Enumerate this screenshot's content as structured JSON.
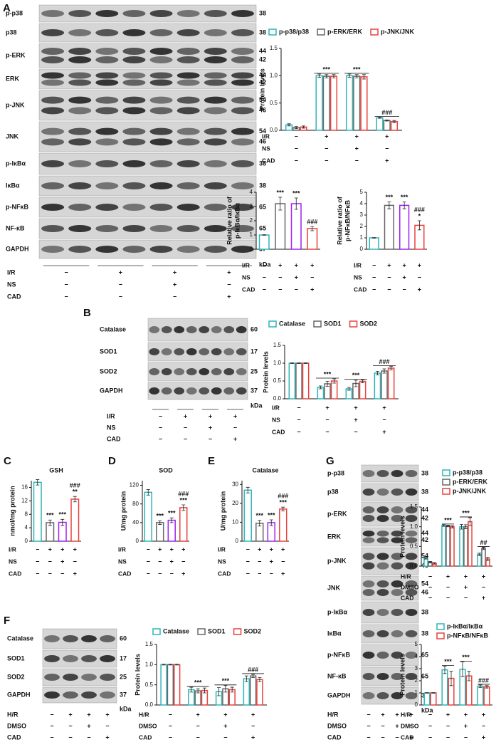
{
  "panel_labels": [
    "A",
    "B",
    "C",
    "D",
    "E",
    "F",
    "G"
  ],
  "blots": [
    {
      "rows": [
        {
          "label": "p-p38",
          "kda": [
            38
          ]
        },
        {
          "label": "p38",
          "kda": [
            38
          ]
        },
        {
          "label": "p-ERK",
          "kda": [
            44,
            42
          ]
        },
        {
          "label": "ERK",
          "kda": [
            44,
            42
          ]
        },
        {
          "label": "p-JNK",
          "kda": [
            54,
            46
          ]
        },
        {
          "label": "JNK",
          "kda": [
            54,
            46
          ]
        },
        {
          "label": "p-IκBα",
          "kda": [
            38
          ]
        },
        {
          "label": "IκBα",
          "kda": [
            38
          ]
        },
        {
          "label": "p-NFκB",
          "kda": [
            65
          ]
        },
        {
          "label": "NF-κB",
          "kda": [
            65
          ]
        },
        {
          "label": "GAPDH",
          "kda": [
            37
          ]
        }
      ],
      "kda_unit": "kDa",
      "conditions": [
        {
          "name": "I/R",
          "signs": [
            "−",
            "+",
            "+",
            "+"
          ]
        },
        {
          "name": "NS",
          "signs": [
            "−",
            "−",
            "+",
            "−"
          ]
        },
        {
          "name": "CAD",
          "signs": [
            "−",
            "−",
            "−",
            "+"
          ]
        }
      ]
    },
    {
      "rows": [
        {
          "label": "Catalase",
          "kda": [
            60
          ]
        },
        {
          "label": "SOD1",
          "kda": [
            17
          ]
        },
        {
          "label": "SOD2",
          "kda": [
            25
          ]
        },
        {
          "label": "GAPDH",
          "kda": [
            37
          ]
        }
      ],
      "kda_unit": "kDa",
      "conditions": [
        {
          "name": "I/R",
          "signs": [
            "−",
            "+",
            "+",
            "+"
          ]
        },
        {
          "name": "NS",
          "signs": [
            "−",
            "−",
            "+",
            "−"
          ]
        },
        {
          "name": "CAD",
          "signs": [
            "−",
            "−",
            "−",
            "+"
          ]
        }
      ]
    },
    {
      "rows": [
        {
          "label": "Catalase",
          "kda": [
            60
          ]
        },
        {
          "label": "SOD1",
          "kda": [
            17
          ]
        },
        {
          "label": "SOD2",
          "kda": [
            25
          ]
        },
        {
          "label": "GAPDH",
          "kda": [
            37
          ]
        }
      ],
      "kda_unit": "kDa",
      "conditions": [
        {
          "name": "H/R",
          "signs": [
            "−",
            "+",
            "+",
            "+"
          ]
        },
        {
          "name": "DMSO",
          "signs": [
            "−",
            "−",
            "+",
            "−"
          ]
        },
        {
          "name": "CAD",
          "signs": [
            "−",
            "−",
            "−",
            "+"
          ]
        }
      ]
    },
    {
      "rows": [
        {
          "label": "p-p38",
          "kda": [
            38
          ]
        },
        {
          "label": "p38",
          "kda": [
            38
          ]
        },
        {
          "label": "p-ERK",
          "kda": [
            44,
            42
          ]
        },
        {
          "label": "ERK",
          "kda": [
            44,
            42
          ]
        },
        {
          "label": "p-JNK",
          "kda": [
            54,
            46
          ]
        },
        {
          "label": "JNK",
          "kda": [
            54,
            46
          ]
        },
        {
          "label": "p-IκBα",
          "kda": [
            38
          ]
        },
        {
          "label": "IκBα",
          "kda": [
            38
          ]
        },
        {
          "label": "p-NFκB",
          "kda": [
            65
          ]
        },
        {
          "label": "NF-κB",
          "kda": [
            65
          ]
        },
        {
          "label": "GAPDH",
          "kda": [
            37
          ]
        }
      ],
      "kda_unit": "kDa",
      "conditions": [
        {
          "name": "H/R",
          "signs": [
            "−",
            "+",
            "+",
            "+"
          ]
        },
        {
          "name": "DMSO",
          "signs": [
            "−",
            "−",
            "+",
            "−"
          ]
        },
        {
          "name": "CAD",
          "signs": [
            "−",
            "−",
            "−",
            "+"
          ]
        }
      ]
    }
  ],
  "chart_data": [
    {
      "type": "bar",
      "ylabel": "Protein levels",
      "ylim": [
        0,
        1.5
      ],
      "yticks": [
        {
          "value": 0,
          "label": "0.0"
        },
        0.5,
        {
          "value": 1,
          "label": "1.0"
        },
        1.5
      ],
      "conditions": [
        {
          "name": "I/R",
          "signs": [
            "−",
            "+",
            "+",
            "+"
          ]
        },
        {
          "name": "NS",
          "signs": [
            "−",
            "−",
            "+",
            "−"
          ]
        },
        {
          "name": "CAD",
          "signs": [
            "−",
            "−",
            "−",
            "+"
          ]
        }
      ],
      "series": [
        {
          "name": "p-p38/p38",
          "color": "#2bb5b8",
          "values": [
            0.1,
            1.0,
            1.0,
            0.23
          ],
          "errors": [
            0.02,
            0.03,
            0.03,
            0.01
          ]
        },
        {
          "name": "p-ERK/ERK",
          "color": "#666666",
          "values": [
            0.05,
            0.99,
            0.99,
            0.18
          ],
          "errors": [
            0.02,
            0.03,
            0.03,
            0.01
          ]
        },
        {
          "name": "p-JNK/JNK",
          "color": "#e8413c",
          "values": [
            0.06,
            0.99,
            0.98,
            0.16
          ],
          "errors": [
            0.02,
            0.03,
            0.04,
            0.02
          ]
        }
      ],
      "annotations": [
        [],
        [
          "***"
        ],
        [
          "***"
        ],
        [
          "###"
        ]
      ]
    },
    {
      "type": "bar",
      "ylabel": [
        "Relative ratio of",
        "p-IκBα/IκBα"
      ],
      "ylim": [
        0,
        4
      ],
      "yticks": [
        0,
        1,
        2,
        3,
        4
      ],
      "conditions": [
        {
          "name": "I/R",
          "signs": [
            "−",
            "+",
            "+",
            "+"
          ]
        },
        {
          "name": "NS",
          "signs": [
            "−",
            "−",
            "+",
            "−"
          ]
        },
        {
          "name": "CAD",
          "signs": [
            "−",
            "−",
            "−",
            "+"
          ]
        }
      ],
      "values": [
        1,
        3.2,
        3.2,
        1.45
      ],
      "errors": [
        0.02,
        0.45,
        0.4,
        0.15
      ],
      "colors": [
        "#2bb5b8",
        "#666666",
        "#a020f0",
        "#e8413c"
      ],
      "annotations": [
        [],
        [
          "***"
        ],
        [
          "***"
        ],
        [
          "###"
        ]
      ]
    },
    {
      "type": "bar",
      "ylabel": [
        "Relative ratio of",
        "p-NFκB/NFκB"
      ],
      "ylim": [
        0,
        5
      ],
      "yticks": [
        0,
        1,
        2,
        3,
        4,
        5
      ],
      "conditions": [
        {
          "name": "I/R",
          "signs": [
            "−",
            "+",
            "+",
            "+"
          ]
        },
        {
          "name": "NS",
          "signs": [
            "−",
            "−",
            "+",
            "−"
          ]
        },
        {
          "name": "CAD",
          "signs": [
            "−",
            "−",
            "−",
            "+"
          ]
        }
      ],
      "values": [
        1,
        3.85,
        3.85,
        2.1
      ],
      "errors": [
        0.02,
        0.3,
        0.3,
        0.4
      ],
      "colors": [
        "#2bb5b8",
        "#666666",
        "#a020f0",
        "#e8413c"
      ],
      "annotations": [
        [],
        [
          "***"
        ],
        [
          "***"
        ],
        [
          "###",
          "*"
        ]
      ]
    },
    {
      "type": "bar",
      "ylabel": "Protein levels",
      "ylim": [
        0,
        1.5
      ],
      "yticks": [
        {
          "value": 0,
          "label": "0.0"
        },
        0.5,
        {
          "value": 1,
          "label": "1.0"
        },
        1.5
      ],
      "conditions": [
        {
          "name": "I/R",
          "signs": [
            "−",
            "+",
            "+",
            "+"
          ]
        },
        {
          "name": "NS",
          "signs": [
            "−",
            "−",
            "+",
            "−"
          ]
        },
        {
          "name": "CAD",
          "signs": [
            "−",
            "−",
            "−",
            "+"
          ]
        }
      ],
      "series": [
        {
          "name": "Catalase",
          "color": "#2bb5b8",
          "values": [
            1,
            0.32,
            0.28,
            0.72
          ],
          "errors": [
            0.01,
            0.04,
            0.04,
            0.05
          ]
        },
        {
          "name": "SOD1",
          "color": "#666666",
          "values": [
            1,
            0.42,
            0.43,
            0.78
          ],
          "errors": [
            0.01,
            0.07,
            0.09,
            0.06
          ]
        },
        {
          "name": "SOD2",
          "color": "#e8413c",
          "values": [
            1,
            0.5,
            0.49,
            0.86
          ],
          "errors": [
            0.01,
            0.06,
            0.04,
            0.05
          ]
        }
      ],
      "annotations": [
        [],
        [
          "***"
        ],
        [
          "***"
        ],
        [
          "###"
        ]
      ]
    },
    {
      "type": "bar",
      "title": "GSH",
      "ylabel": "nmol/mg protein",
      "ylim": [
        0,
        18
      ],
      "yticks": [
        0,
        4,
        8,
        12,
        16
      ],
      "conditions": [
        {
          "name": "I/R",
          "signs": [
            "−",
            "+",
            "+",
            "+"
          ]
        },
        {
          "name": "NS",
          "signs": [
            "−",
            "−",
            "+",
            "−"
          ]
        },
        {
          "name": "CAD",
          "signs": [
            "−",
            "−",
            "−",
            "+"
          ]
        }
      ],
      "values": [
        17.5,
        5.5,
        5.6,
        12.5
      ],
      "errors": [
        0.8,
        0.8,
        0.9,
        0.8
      ],
      "colors": [
        "#2bb5b8",
        "#666666",
        "#a020f0",
        "#e8413c"
      ],
      "annotations": [
        [],
        [
          "***"
        ],
        [
          "***"
        ],
        [
          "###",
          "**"
        ]
      ]
    },
    {
      "type": "bar",
      "title": "SOD",
      "ylabel": "U/mg protein",
      "ylim": [
        0,
        130
      ],
      "yticks": [
        0,
        40,
        80,
        120
      ],
      "conditions": [
        {
          "name": "I/R",
          "signs": [
            "−",
            "+",
            "+",
            "+"
          ]
        },
        {
          "name": "NS",
          "signs": [
            "−",
            "−",
            "+",
            "−"
          ]
        },
        {
          "name": "CAD",
          "signs": [
            "−",
            "−",
            "−",
            "+"
          ]
        }
      ],
      "values": [
        105,
        40,
        45,
        72
      ],
      "errors": [
        6,
        4,
        5,
        6
      ],
      "colors": [
        "#2bb5b8",
        "#666666",
        "#a020f0",
        "#e8413c"
      ],
      "annotations": [
        [],
        [
          "***"
        ],
        [
          "***"
        ],
        [
          "###",
          "***"
        ]
      ]
    },
    {
      "type": "bar",
      "title": "Catalase",
      "ylabel": "U/mg protein",
      "ylim": [
        0,
        32
      ],
      "yticks": [
        0,
        10,
        20,
        30
      ],
      "conditions": [
        {
          "name": "I/R",
          "signs": [
            "−",
            "+",
            "+",
            "+"
          ]
        },
        {
          "name": "NS",
          "signs": [
            "−",
            "−",
            "+",
            "−"
          ]
        },
        {
          "name": "CAD",
          "signs": [
            "−",
            "−",
            "−",
            "+"
          ]
        }
      ],
      "values": [
        27,
        9.5,
        9.8,
        17
      ],
      "errors": [
        1.5,
        1.5,
        1.5,
        1
      ],
      "colors": [
        "#2bb5b8",
        "#666666",
        "#a020f0",
        "#e8413c"
      ],
      "annotations": [
        [],
        [
          "***"
        ],
        [
          "***"
        ],
        [
          "###",
          "***"
        ]
      ]
    },
    {
      "type": "bar",
      "ylabel": "Protein levels",
      "ylim": [
        0,
        1.5
      ],
      "yticks": [
        {
          "value": 0,
          "label": "0.0"
        },
        0.5,
        {
          "value": 1,
          "label": "1.0"
        },
        1.5
      ],
      "conditions": [
        {
          "name": "H/R",
          "signs": [
            "−",
            "+",
            "+",
            "+"
          ]
        },
        {
          "name": "DMSO",
          "signs": [
            "−",
            "−",
            "+",
            "−"
          ]
        },
        {
          "name": "CAD",
          "signs": [
            "−",
            "−",
            "−",
            "+"
          ]
        }
      ],
      "series": [
        {
          "name": "Catalase",
          "color": "#2bb5b8",
          "values": [
            1,
            0.38,
            0.33,
            0.65
          ],
          "errors": [
            0.01,
            0.06,
            0.1,
            0.07
          ]
        },
        {
          "name": "SOD1",
          "color": "#666666",
          "values": [
            1,
            0.35,
            0.4,
            0.72
          ],
          "errors": [
            0.01,
            0.05,
            0.08,
            0.04
          ]
        },
        {
          "name": "SOD2",
          "color": "#e8413c",
          "values": [
            1,
            0.36,
            0.38,
            0.63
          ],
          "errors": [
            0.01,
            0.06,
            0.06,
            0.05
          ]
        }
      ],
      "annotations": [
        [],
        [
          "***"
        ],
        [
          "***"
        ],
        [
          "###"
        ]
      ]
    },
    {
      "type": "bar",
      "ylabel": "Protein levels",
      "ylim": [
        0,
        1.5
      ],
      "yticks": [
        {
          "value": 0,
          "label": "0.0"
        },
        0.5,
        {
          "value": 1,
          "label": "1.0"
        },
        1.5
      ],
      "conditions": [
        {
          "name": "H/R",
          "signs": [
            "−",
            "+",
            "+",
            "+"
          ]
        },
        {
          "name": "DMSO",
          "signs": [
            "−",
            "−",
            "+",
            "−"
          ]
        },
        {
          "name": "CAD",
          "signs": [
            "−",
            "−",
            "−",
            "+"
          ]
        }
      ],
      "series": [
        {
          "name": "p-p38/p38",
          "color": "#2bb5b8",
          "values": [
            0.2,
            1.03,
            1.0,
            0.3
          ],
          "errors": [
            0.02,
            0.02,
            0.06,
            0.03
          ]
        },
        {
          "name": "p-ERK/ERK",
          "color": "#666666",
          "values": [
            0.1,
            1.02,
            1.0,
            0.45
          ],
          "errors": [
            0.02,
            0.02,
            0.05,
            0.03
          ]
        },
        {
          "name": "p-JNK/JNK",
          "color": "#e8413c",
          "values": [
            0.07,
            1.0,
            1.13,
            0.18
          ],
          "errors": [
            0.02,
            0.03,
            0.1,
            0.04
          ]
        }
      ],
      "annotations": [
        [],
        [
          "***"
        ],
        [
          "***"
        ],
        [
          "##"
        ]
      ]
    },
    {
      "type": "bar",
      "ylabel": "Protein levels",
      "ylim": [
        0,
        5
      ],
      "yticks": [
        0,
        1,
        2,
        3,
        4,
        5
      ],
      "conditions": [
        {
          "name": "H/R",
          "signs": [
            "−",
            "+",
            "+",
            "+"
          ]
        },
        {
          "name": "DMSO",
          "signs": [
            "−",
            "−",
            "+",
            "−"
          ]
        },
        {
          "name": "CAD",
          "signs": [
            "−",
            "−",
            "−",
            "+"
          ]
        }
      ],
      "series": [
        {
          "name": "p-IκBα/IκBα",
          "color": "#2bb5b8",
          "values": [
            1,
            2.9,
            2.95,
            1.55
          ],
          "errors": [
            0.02,
            0.3,
            0.6,
            0.1
          ]
        },
        {
          "name": "p-NFκB/NFκB",
          "color": "#e8413c",
          "values": [
            1,
            2.2,
            2.4,
            1.5
          ],
          "errors": [
            0.02,
            0.6,
            0.4,
            0.1
          ]
        }
      ],
      "annotations": [
        [],
        [
          "***"
        ],
        [
          "***"
        ],
        [
          "###"
        ]
      ]
    }
  ]
}
